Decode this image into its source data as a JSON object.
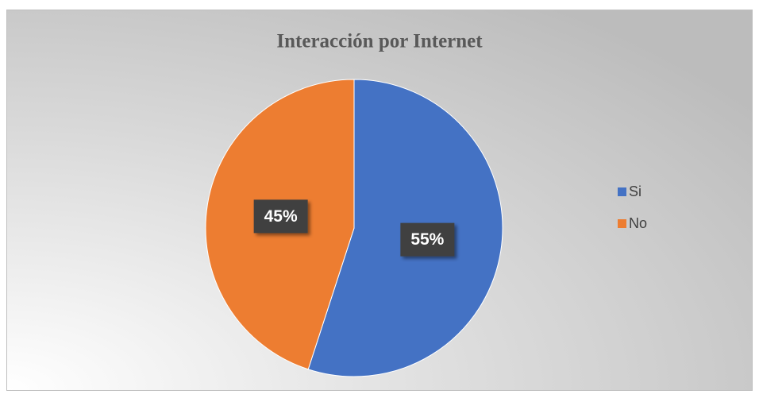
{
  "chart_data": {
    "type": "pie",
    "title": "Interacción por Internet",
    "categories": [
      "Si",
      "No"
    ],
    "values": [
      55,
      45
    ],
    "value_labels": [
      "55%",
      "45%"
    ],
    "colors": [
      "#4472c4",
      "#ed7d31"
    ],
    "legend": "right"
  }
}
